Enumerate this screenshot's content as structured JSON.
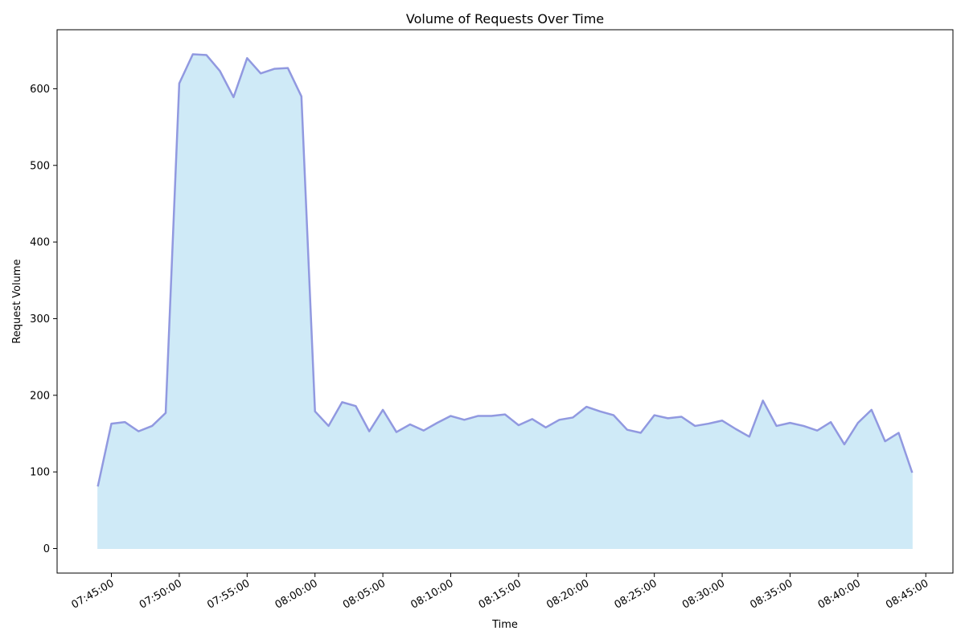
{
  "chart_data": {
    "type": "area",
    "title": "Volume of Requests Over Time",
    "xlabel": "Time",
    "ylabel": "Request Volume",
    "x_start": "07:44",
    "x_step_minutes": 1,
    "values": [
      81,
      163,
      165,
      153,
      160,
      177,
      607,
      645,
      644,
      623,
      589,
      640,
      620,
      626,
      627,
      590,
      179,
      160,
      191,
      186,
      153,
      181,
      152,
      162,
      154,
      164,
      173,
      168,
      173,
      173,
      175,
      161,
      169,
      158,
      168,
      171,
      185,
      179,
      174,
      155,
      151,
      174,
      170,
      172,
      160,
      163,
      167,
      156,
      146,
      193,
      160,
      164,
      160,
      154,
      165,
      136,
      164,
      181,
      140,
      151,
      99
    ],
    "x_ticks": [
      "07:45:00",
      "07:50:00",
      "07:55:00",
      "08:00:00",
      "08:05:00",
      "08:10:00",
      "08:15:00",
      "08:20:00",
      "08:25:00",
      "08:30:00",
      "08:35:00",
      "08:40:00",
      "08:45:00"
    ],
    "y_ticks": [
      "0",
      "100",
      "200",
      "300",
      "400",
      "500",
      "600"
    ],
    "ylim": [
      -32,
      677
    ],
    "xlim": [
      "07:41",
      "08:47"
    ],
    "grid": false,
    "line_color": "#9199e0",
    "fill_color": "#cfeaf7"
  }
}
